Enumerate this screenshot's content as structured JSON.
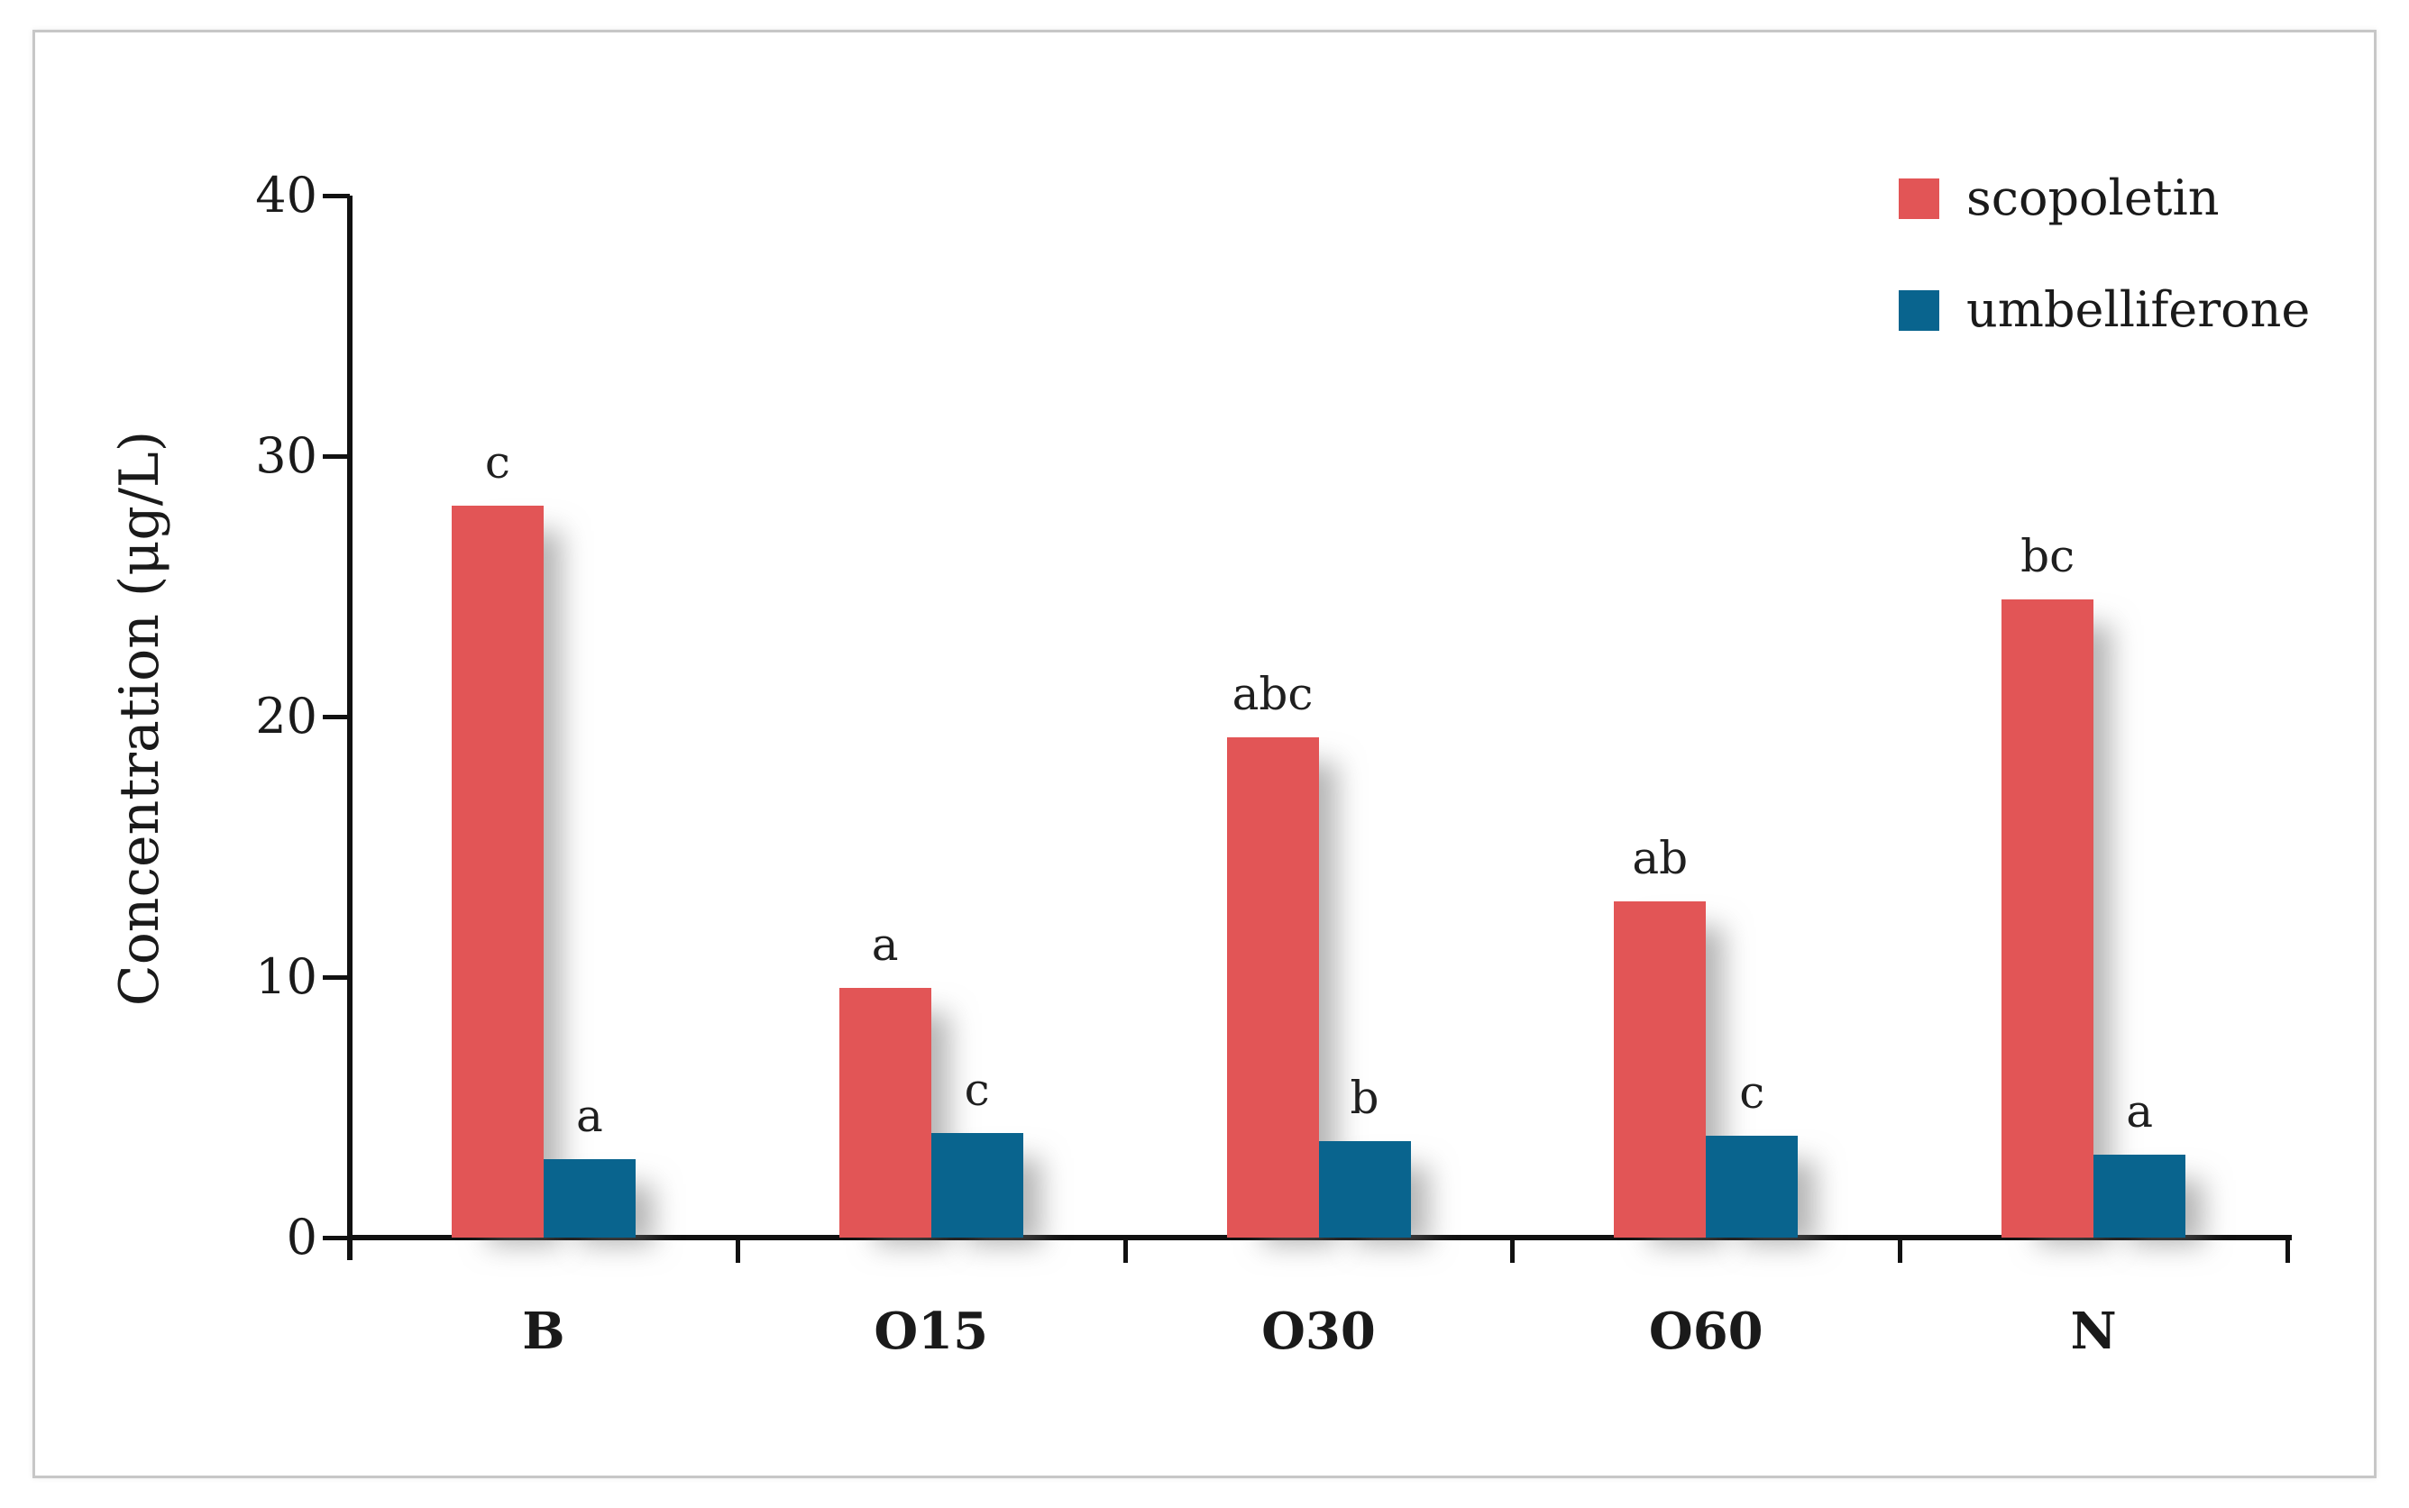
{
  "figure": {
    "background": "#ffffff",
    "frame_color": "#c7c7c7",
    "axis_color": "#111111"
  },
  "chart_data": {
    "type": "bar",
    "title": "",
    "xlabel": "",
    "ylabel": "Concentration (μg/L)",
    "ylim": [
      0,
      40
    ],
    "yticks": [
      0,
      10,
      20,
      30,
      40
    ],
    "grid": false,
    "legend_position": "top-right",
    "categories": [
      "B",
      "O15",
      "O30",
      "O60",
      "N"
    ],
    "series": [
      {
        "name": "scopoletin",
        "color": "#E25556",
        "values": [
          28.1,
          9.6,
          19.2,
          12.9,
          24.5
        ],
        "sig_letters": [
          "c",
          "a",
          "abc",
          "ab",
          "bc"
        ]
      },
      {
        "name": "umbelliferone",
        "color": "#09648E",
        "values": [
          3.0,
          4.0,
          3.7,
          3.9,
          3.2
        ],
        "sig_letters": [
          "a",
          "c",
          "b",
          "c",
          "a"
        ]
      }
    ]
  }
}
